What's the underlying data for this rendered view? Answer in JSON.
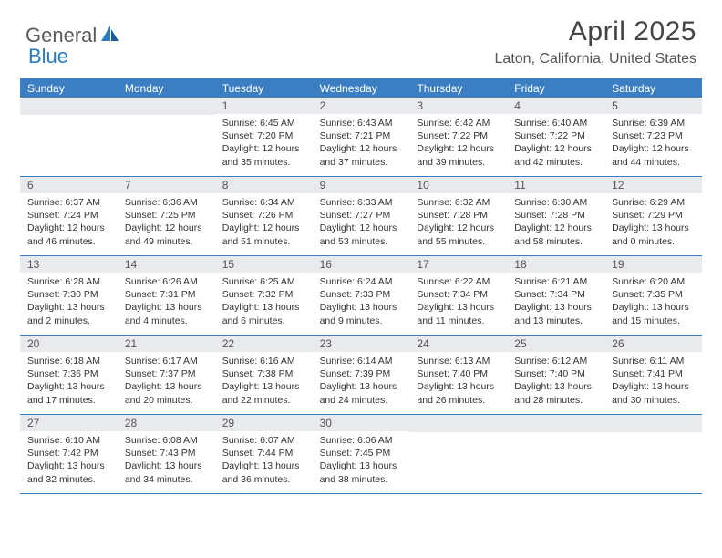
{
  "logo": {
    "general": "General",
    "blue": "Blue"
  },
  "title": "April 2025",
  "location": "Laton, California, United States",
  "weekdays": [
    "Sunday",
    "Monday",
    "Tuesday",
    "Wednesday",
    "Thursday",
    "Friday",
    "Saturday"
  ],
  "colors": {
    "header_bg": "#3b7fc2",
    "day_header_bg": "#e8eaed",
    "text": "#333333",
    "title": "#444444"
  },
  "weeks": [
    [
      {
        "empty": true
      },
      {
        "empty": true
      },
      {
        "num": "1",
        "sunrise": "Sunrise: 6:45 AM",
        "sunset": "Sunset: 7:20 PM",
        "daylight": "Daylight: 12 hours and 35 minutes."
      },
      {
        "num": "2",
        "sunrise": "Sunrise: 6:43 AM",
        "sunset": "Sunset: 7:21 PM",
        "daylight": "Daylight: 12 hours and 37 minutes."
      },
      {
        "num": "3",
        "sunrise": "Sunrise: 6:42 AM",
        "sunset": "Sunset: 7:22 PM",
        "daylight": "Daylight: 12 hours and 39 minutes."
      },
      {
        "num": "4",
        "sunrise": "Sunrise: 6:40 AM",
        "sunset": "Sunset: 7:22 PM",
        "daylight": "Daylight: 12 hours and 42 minutes."
      },
      {
        "num": "5",
        "sunrise": "Sunrise: 6:39 AM",
        "sunset": "Sunset: 7:23 PM",
        "daylight": "Daylight: 12 hours and 44 minutes."
      }
    ],
    [
      {
        "num": "6",
        "sunrise": "Sunrise: 6:37 AM",
        "sunset": "Sunset: 7:24 PM",
        "daylight": "Daylight: 12 hours and 46 minutes."
      },
      {
        "num": "7",
        "sunrise": "Sunrise: 6:36 AM",
        "sunset": "Sunset: 7:25 PM",
        "daylight": "Daylight: 12 hours and 49 minutes."
      },
      {
        "num": "8",
        "sunrise": "Sunrise: 6:34 AM",
        "sunset": "Sunset: 7:26 PM",
        "daylight": "Daylight: 12 hours and 51 minutes."
      },
      {
        "num": "9",
        "sunrise": "Sunrise: 6:33 AM",
        "sunset": "Sunset: 7:27 PM",
        "daylight": "Daylight: 12 hours and 53 minutes."
      },
      {
        "num": "10",
        "sunrise": "Sunrise: 6:32 AM",
        "sunset": "Sunset: 7:28 PM",
        "daylight": "Daylight: 12 hours and 55 minutes."
      },
      {
        "num": "11",
        "sunrise": "Sunrise: 6:30 AM",
        "sunset": "Sunset: 7:28 PM",
        "daylight": "Daylight: 12 hours and 58 minutes."
      },
      {
        "num": "12",
        "sunrise": "Sunrise: 6:29 AM",
        "sunset": "Sunset: 7:29 PM",
        "daylight": "Daylight: 13 hours and 0 minutes."
      }
    ],
    [
      {
        "num": "13",
        "sunrise": "Sunrise: 6:28 AM",
        "sunset": "Sunset: 7:30 PM",
        "daylight": "Daylight: 13 hours and 2 minutes."
      },
      {
        "num": "14",
        "sunrise": "Sunrise: 6:26 AM",
        "sunset": "Sunset: 7:31 PM",
        "daylight": "Daylight: 13 hours and 4 minutes."
      },
      {
        "num": "15",
        "sunrise": "Sunrise: 6:25 AM",
        "sunset": "Sunset: 7:32 PM",
        "daylight": "Daylight: 13 hours and 6 minutes."
      },
      {
        "num": "16",
        "sunrise": "Sunrise: 6:24 AM",
        "sunset": "Sunset: 7:33 PM",
        "daylight": "Daylight: 13 hours and 9 minutes."
      },
      {
        "num": "17",
        "sunrise": "Sunrise: 6:22 AM",
        "sunset": "Sunset: 7:34 PM",
        "daylight": "Daylight: 13 hours and 11 minutes."
      },
      {
        "num": "18",
        "sunrise": "Sunrise: 6:21 AM",
        "sunset": "Sunset: 7:34 PM",
        "daylight": "Daylight: 13 hours and 13 minutes."
      },
      {
        "num": "19",
        "sunrise": "Sunrise: 6:20 AM",
        "sunset": "Sunset: 7:35 PM",
        "daylight": "Daylight: 13 hours and 15 minutes."
      }
    ],
    [
      {
        "num": "20",
        "sunrise": "Sunrise: 6:18 AM",
        "sunset": "Sunset: 7:36 PM",
        "daylight": "Daylight: 13 hours and 17 minutes."
      },
      {
        "num": "21",
        "sunrise": "Sunrise: 6:17 AM",
        "sunset": "Sunset: 7:37 PM",
        "daylight": "Daylight: 13 hours and 20 minutes."
      },
      {
        "num": "22",
        "sunrise": "Sunrise: 6:16 AM",
        "sunset": "Sunset: 7:38 PM",
        "daylight": "Daylight: 13 hours and 22 minutes."
      },
      {
        "num": "23",
        "sunrise": "Sunrise: 6:14 AM",
        "sunset": "Sunset: 7:39 PM",
        "daylight": "Daylight: 13 hours and 24 minutes."
      },
      {
        "num": "24",
        "sunrise": "Sunrise: 6:13 AM",
        "sunset": "Sunset: 7:40 PM",
        "daylight": "Daylight: 13 hours and 26 minutes."
      },
      {
        "num": "25",
        "sunrise": "Sunrise: 6:12 AM",
        "sunset": "Sunset: 7:40 PM",
        "daylight": "Daylight: 13 hours and 28 minutes."
      },
      {
        "num": "26",
        "sunrise": "Sunrise: 6:11 AM",
        "sunset": "Sunset: 7:41 PM",
        "daylight": "Daylight: 13 hours and 30 minutes."
      }
    ],
    [
      {
        "num": "27",
        "sunrise": "Sunrise: 6:10 AM",
        "sunset": "Sunset: 7:42 PM",
        "daylight": "Daylight: 13 hours and 32 minutes."
      },
      {
        "num": "28",
        "sunrise": "Sunrise: 6:08 AM",
        "sunset": "Sunset: 7:43 PM",
        "daylight": "Daylight: 13 hours and 34 minutes."
      },
      {
        "num": "29",
        "sunrise": "Sunrise: 6:07 AM",
        "sunset": "Sunset: 7:44 PM",
        "daylight": "Daylight: 13 hours and 36 minutes."
      },
      {
        "num": "30",
        "sunrise": "Sunrise: 6:06 AM",
        "sunset": "Sunset: 7:45 PM",
        "daylight": "Daylight: 13 hours and 38 minutes."
      },
      {
        "empty": true
      },
      {
        "empty": true
      },
      {
        "empty": true
      }
    ]
  ]
}
